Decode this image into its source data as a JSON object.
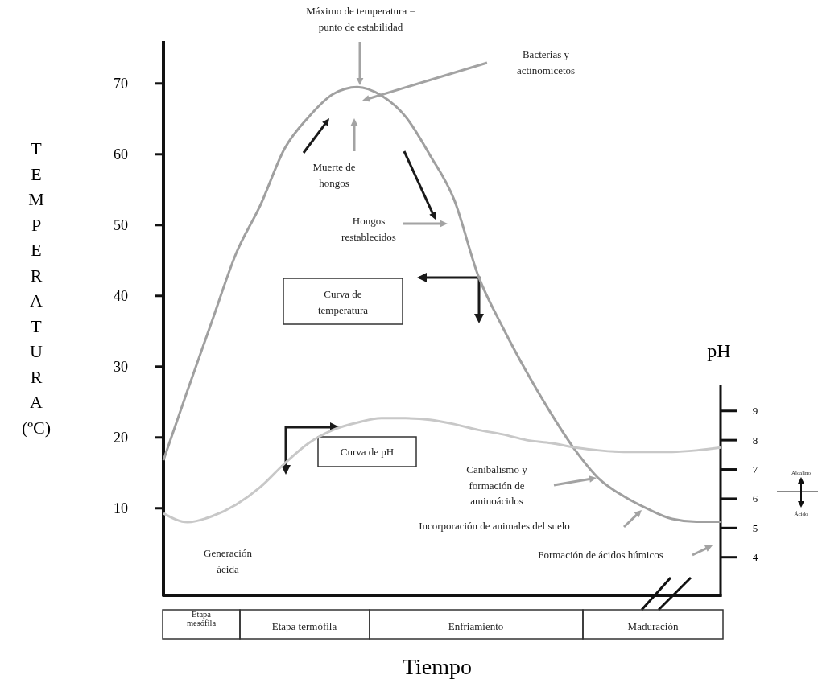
{
  "chart_data": {
    "type": "line",
    "xlabel": "Tiempo",
    "ylabel": "TEMPERATURA (ºC)",
    "y2label": "pH",
    "categories": [
      null,
      null,
      null,
      null,
      null,
      null,
      null,
      null,
      null,
      null,
      null,
      null,
      null,
      null,
      null,
      null,
      null,
      null,
      null,
      null,
      null,
      null,
      null,
      null
    ],
    "ylim": [
      -2.3,
      76
    ],
    "yticks": [
      10,
      20,
      30,
      40,
      50,
      60,
      70
    ],
    "y2lim": [
      2.7,
      9.9
    ],
    "y2ticks": [
      4,
      5,
      6,
      7,
      8,
      9
    ],
    "series": [
      {
        "color": "#a0a0a0",
        "values": [
          16.8,
          26.7,
          36.4,
          46,
          52.8,
          60.8,
          65.3,
          68.5,
          69.5,
          68.3,
          65.3,
          59.9,
          53.6,
          42.8,
          35.6,
          29.2,
          23.4,
          18.2,
          14.1,
          11.7,
          9.9,
          8.5,
          8.1,
          8.1
        ]
      },
      {
        "color": "#c8c8c8",
        "axis": "y2",
        "values": [
          5.5,
          5.2,
          5.4,
          5.8,
          6.4,
          7.2,
          7.9,
          8.35,
          8.6,
          8.75,
          8.75,
          8.7,
          8.55,
          8.35,
          8.2,
          8,
          7.9,
          7.75,
          7.65,
          7.6,
          7.6,
          7.6,
          7.65,
          7.75
        ]
      }
    ],
    "annotations": [
      "Máximo de temperatura = punto de estabilidad",
      "Bacterias y actinomicetos",
      "Muerte de hongos",
      "Hongos restablecidos",
      "Curva de temperatura",
      "Curva de pH",
      "Canibalismo y formación de aminoácidos",
      "Incorporación de animales del suelo",
      "Generación ácida",
      "Formación de ácidos húmicos",
      "Etapa mesófila",
      "Etapa termófila",
      "Enfriamiento",
      "Maduración",
      "Alcalino",
      "Ácido"
    ]
  }
}
